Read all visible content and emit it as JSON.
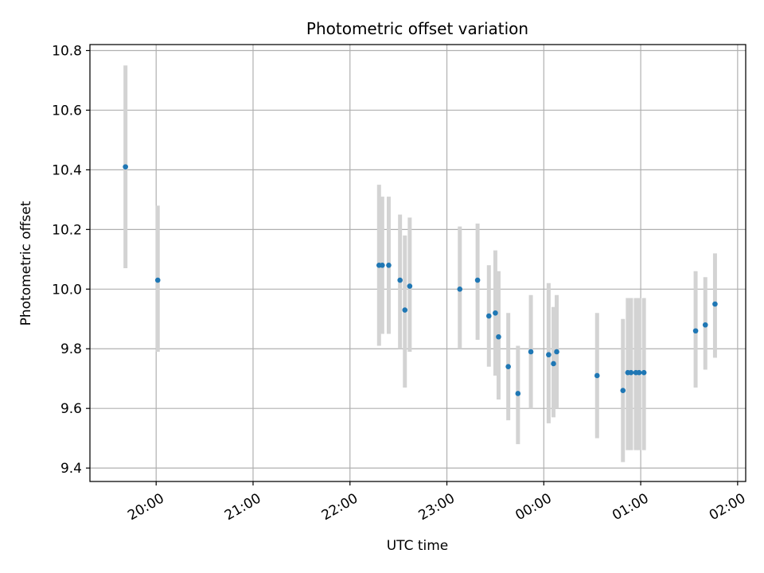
{
  "chart_data": {
    "type": "scatter",
    "title": "Photometric offset variation",
    "xlabel": "UTC time",
    "ylabel": "Photometric offset",
    "x_axis": {
      "kind": "time",
      "range": [
        "19:19",
        "02:05"
      ],
      "ticks": [
        "20:00",
        "21:00",
        "22:00",
        "23:00",
        "00:00",
        "01:00",
        "02:00"
      ]
    },
    "y_axis": {
      "range": [
        9.355,
        10.82
      ],
      "ticks": [
        "9.4",
        "9.6",
        "9.8",
        "10.0",
        "10.2",
        "10.4",
        "10.6",
        "10.8"
      ]
    },
    "grid": true,
    "colors": {
      "points": "#1f77b4",
      "error_bars": "#d3d3d3",
      "grid": "#b0b0b0"
    },
    "points": [
      {
        "x": "19:41",
        "y": 10.41,
        "lo": 10.07,
        "hi": 10.75
      },
      {
        "x": "20:01",
        "y": 10.03,
        "lo": 9.79,
        "hi": 10.28
      },
      {
        "x": "22:18",
        "y": 10.08,
        "lo": 9.81,
        "hi": 10.35
      },
      {
        "x": "22:20",
        "y": 10.08,
        "lo": 9.85,
        "hi": 10.31
      },
      {
        "x": "22:24",
        "y": 10.08,
        "lo": 9.85,
        "hi": 10.31
      },
      {
        "x": "22:31",
        "y": 10.03,
        "lo": 9.8,
        "hi": 10.25
      },
      {
        "x": "22:34",
        "y": 9.93,
        "lo": 9.67,
        "hi": 10.18
      },
      {
        "x": "22:37",
        "y": 10.01,
        "lo": 9.79,
        "hi": 10.24
      },
      {
        "x": "23:08",
        "y": 10.0,
        "lo": 9.8,
        "hi": 10.21
      },
      {
        "x": "23:19",
        "y": 10.03,
        "lo": 9.83,
        "hi": 10.22
      },
      {
        "x": "23:26",
        "y": 9.91,
        "lo": 9.74,
        "hi": 10.08
      },
      {
        "x": "23:30",
        "y": 9.92,
        "lo": 9.71,
        "hi": 10.13
      },
      {
        "x": "23:32",
        "y": 9.84,
        "lo": 9.63,
        "hi": 10.06
      },
      {
        "x": "23:38",
        "y": 9.74,
        "lo": 9.56,
        "hi": 9.92
      },
      {
        "x": "23:44",
        "y": 9.65,
        "lo": 9.48,
        "hi": 9.81
      },
      {
        "x": "23:52",
        "y": 9.79,
        "lo": 9.6,
        "hi": 9.98
      },
      {
        "x": "00:03",
        "y": 9.78,
        "lo": 9.55,
        "hi": 10.02
      },
      {
        "x": "00:06",
        "y": 9.75,
        "lo": 9.57,
        "hi": 9.94
      },
      {
        "x": "00:08",
        "y": 9.79,
        "lo": 9.6,
        "hi": 9.98
      },
      {
        "x": "00:33",
        "y": 9.71,
        "lo": 9.5,
        "hi": 9.92
      },
      {
        "x": "00:49",
        "y": 9.66,
        "lo": 9.42,
        "hi": 9.9
      },
      {
        "x": "00:52",
        "y": 9.72,
        "lo": 9.46,
        "hi": 9.97
      },
      {
        "x": "00:54",
        "y": 9.72,
        "lo": 9.46,
        "hi": 9.97
      },
      {
        "x": "00:57",
        "y": 9.72,
        "lo": 9.46,
        "hi": 9.97
      },
      {
        "x": "00:59",
        "y": 9.72,
        "lo": 9.46,
        "hi": 9.97
      },
      {
        "x": "01:02",
        "y": 9.72,
        "lo": 9.46,
        "hi": 9.97
      },
      {
        "x": "01:34",
        "y": 9.86,
        "lo": 9.67,
        "hi": 10.06
      },
      {
        "x": "01:40",
        "y": 9.88,
        "lo": 9.73,
        "hi": 10.04
      },
      {
        "x": "01:46",
        "y": 9.95,
        "lo": 9.77,
        "hi": 10.12
      }
    ]
  }
}
